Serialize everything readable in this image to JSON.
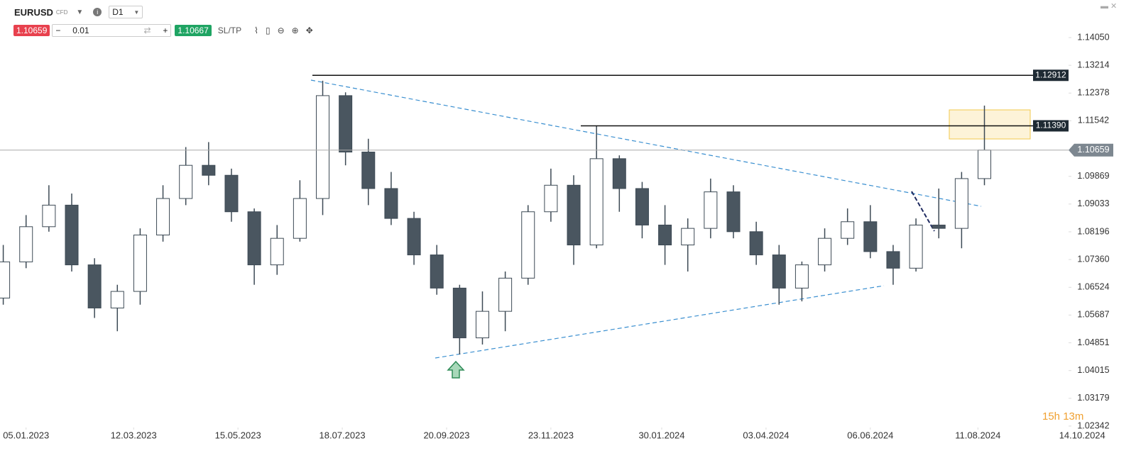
{
  "toolbar": {
    "symbol": "EURUSD",
    "instrument_type": "CFD",
    "timeframe": "D1",
    "sell_price": "1.10659",
    "minus": "−",
    "volume": "0.01",
    "plus": "+",
    "buy_price": "1.10667",
    "sl_tp": "SL/TP"
  },
  "chart_data": {
    "type": "candlestick",
    "x": [
      "22.12.2022",
      "05.01.2023",
      "19.01.2023",
      "02.02.2023",
      "16.02.2023",
      "02.03.2023",
      "16.03.2023",
      "30.03.2023",
      "13.04.2023",
      "27.04.2023",
      "11.05.2023",
      "25.05.2023",
      "08.06.2023",
      "22.06.2023",
      "06.07.2023",
      "20.07.2023",
      "03.08.2023",
      "17.08.2023",
      "31.08.2023",
      "14.09.2023",
      "28.09.2023",
      "12.10.2023",
      "26.10.2023",
      "09.11.2023",
      "23.11.2023",
      "07.12.2023",
      "21.12.2023",
      "04.01.2024",
      "18.01.2024",
      "01.02.2024",
      "15.02.2024",
      "29.02.2024",
      "14.03.2024",
      "28.03.2024",
      "11.04.2024",
      "25.04.2024",
      "09.05.2024",
      "23.05.2024",
      "06.06.2024",
      "20.06.2024",
      "04.07.2024",
      "18.07.2024",
      "01.08.2024",
      "15.08.2024"
    ],
    "open": [
      1.062,
      1.0729,
      1.0835,
      1.09,
      1.072,
      1.059,
      1.064,
      1.081,
      1.092,
      1.102,
      1.099,
      1.088,
      1.072,
      1.08,
      1.092,
      1.123,
      1.106,
      1.095,
      1.086,
      1.075,
      1.065,
      1.05,
      1.058,
      1.068,
      1.088,
      1.096,
      1.078,
      1.104,
      1.095,
      1.084,
      1.078,
      1.083,
      1.094,
      1.082,
      1.075,
      1.065,
      1.072,
      1.08,
      1.085,
      1.076,
      1.071,
      1.084,
      1.083,
      1.098
    ],
    "high": [
      1.078,
      1.087,
      1.096,
      1.0935,
      1.074,
      1.066,
      1.083,
      1.096,
      1.1075,
      1.109,
      1.101,
      1.089,
      1.084,
      1.0975,
      1.1275,
      1.124,
      1.11,
      1.1,
      1.088,
      1.078,
      1.066,
      1.064,
      1.07,
      1.09,
      1.101,
      1.099,
      1.114,
      1.105,
      1.097,
      1.09,
      1.086,
      1.098,
      1.096,
      1.085,
      1.078,
      1.073,
      1.083,
      1.089,
      1.09,
      1.078,
      1.086,
      1.095,
      1.1,
      1.12
    ],
    "low": [
      1.06,
      1.071,
      1.082,
      1.07,
      1.056,
      1.052,
      1.06,
      1.079,
      1.09,
      1.096,
      1.085,
      1.066,
      1.069,
      1.079,
      1.087,
      1.102,
      1.09,
      1.084,
      1.072,
      1.063,
      1.045,
      1.048,
      1.052,
      1.066,
      1.085,
      1.072,
      1.077,
      1.088,
      1.08,
      1.072,
      1.07,
      1.08,
      1.08,
      1.072,
      1.06,
      1.061,
      1.07,
      1.078,
      1.074,
      1.066,
      1.07,
      1.08,
      1.077,
      1.096
    ],
    "close": [
      1.0729,
      1.0835,
      1.09,
      1.072,
      1.059,
      1.064,
      1.081,
      1.092,
      1.102,
      1.099,
      1.088,
      1.072,
      1.08,
      1.092,
      1.123,
      1.106,
      1.095,
      1.086,
      1.075,
      1.065,
      1.05,
      1.058,
      1.068,
      1.088,
      1.096,
      1.078,
      1.104,
      1.095,
      1.084,
      1.078,
      1.083,
      1.094,
      1.082,
      1.075,
      1.065,
      1.072,
      1.08,
      1.085,
      1.076,
      1.071,
      1.084,
      1.083,
      1.098,
      1.1066
    ],
    "xlim": [
      "20.12.2022",
      "16.11.2024"
    ],
    "xticks": [
      "05.01.2023",
      "12.03.2023",
      "15.05.2023",
      "18.07.2023",
      "20.09.2023",
      "23.11.2023",
      "30.01.2024",
      "03.04.2024",
      "06.06.2024",
      "11.08.2024",
      "14.10.2024"
    ],
    "ylim": [
      1.02342,
      1.1405
    ],
    "yticks": [
      {
        "value": 1.1405,
        "label": "1.14050"
      },
      1.13214,
      1.12378,
      1.11542,
      1.09869,
      1.09033,
      1.08196,
      {
        "value": 1.0736,
        "label": "1.07360"
      },
      1.06524,
      1.05687,
      1.04851,
      1.04015,
      1.03179,
      1.02342
    ],
    "levels": [
      1.12912,
      {
        "value": 1.1139,
        "label": "1.11390"
      }
    ],
    "last_price": 1.10659,
    "timer": "15h 13m",
    "up_color": "#ffffff",
    "down_color": "#4a5660",
    "outline_color": "#3d4a55"
  }
}
